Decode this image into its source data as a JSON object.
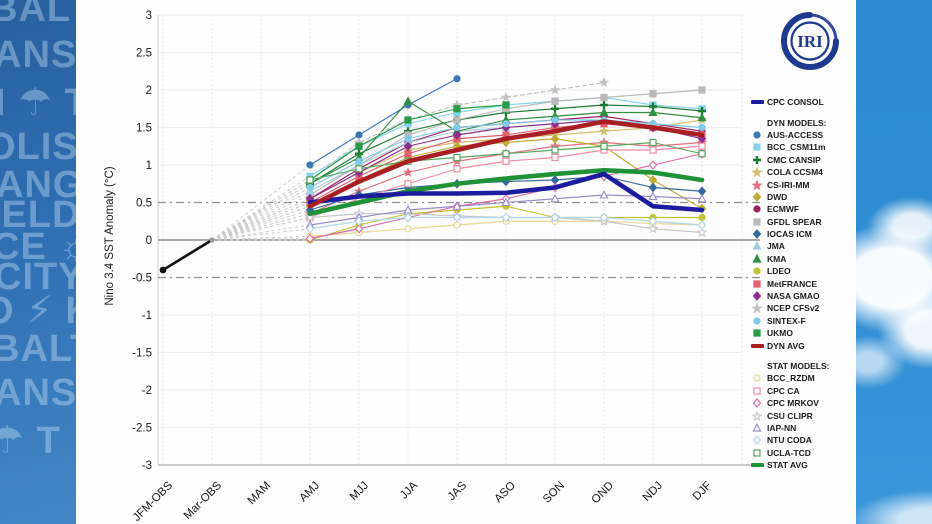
{
  "logo": {
    "text": "IRI"
  },
  "background": {
    "wall_fragments": [
      "BALT",
      "ANS",
      "N ☂ T",
      "OLIS ✦",
      "ANG",
      "IELD",
      "CE ☼",
      "CITY",
      "O ⚡ K",
      "BALT",
      "ANS",
      "☂ T"
    ],
    "wall_color": "#2f6fb4",
    "sky_color": "#2f8dd3"
  },
  "chart_data": {
    "type": "line",
    "title": "",
    "ylabel": "Nino 3.4 SST Anomaly (°C)",
    "xlabel": "",
    "ylim": [
      -3,
      3
    ],
    "ytick_labels": [
      "3",
      "2.5",
      "2",
      "1.5",
      "1",
      "0.5",
      "0",
      "-0.5",
      "-1",
      "-1.5",
      "-2",
      "-2.5",
      "-3"
    ],
    "threshold_lines": [
      0.5,
      -0.5
    ],
    "grid": true,
    "legend_position": "right",
    "categories": [
      "JFM-OBS",
      "Mar-OBS",
      "MAM",
      "AMJ",
      "MJJ",
      "JJA",
      "JAS",
      "ASO",
      "SON",
      "OND",
      "NDJ",
      "DJF"
    ],
    "forecast_start_category": "AMJ",
    "observation": {
      "name": "Observed",
      "color": "#111111",
      "categories": [
        "JFM-OBS",
        "Mar-OBS"
      ],
      "values": [
        -0.4,
        0.0
      ]
    },
    "legend_headers": {
      "dyn": "DYN MODELS:",
      "stat": "STAT MODELS:"
    },
    "series": [
      {
        "name": "CPC CONSOL",
        "group": "consol",
        "style": "avg",
        "color": "#1c1c9e",
        "values": [
          0.5,
          0.58,
          0.62,
          0.62,
          0.63,
          0.7,
          0.88,
          0.45,
          0.4
        ]
      },
      {
        "name": "AUS-ACCESS",
        "group": "dyn",
        "color": "#3a78b4",
        "marker": "circle",
        "open": false,
        "values": [
          1.0,
          1.4,
          1.8,
          2.15,
          null,
          null,
          null,
          null,
          null
        ]
      },
      {
        "name": "BCC_CSM11m",
        "group": "dyn",
        "color": "#86d3ee",
        "marker": "square",
        "open": false,
        "values": [
          0.85,
          1.25,
          1.55,
          1.7,
          1.8,
          1.85,
          1.9,
          1.8,
          1.75
        ]
      },
      {
        "name": "CMC CANSIP",
        "group": "dyn",
        "color": "#1d7c34",
        "marker": "plus",
        "open": false,
        "values": [
          0.75,
          1.15,
          1.45,
          1.6,
          1.7,
          1.75,
          1.8,
          1.78,
          1.72
        ]
      },
      {
        "name": "COLA CCSM4",
        "group": "dyn",
        "color": "#d3bd6e",
        "marker": "star",
        "open": false,
        "values": [
          0.55,
          0.9,
          1.2,
          1.3,
          1.35,
          1.4,
          1.45,
          1.5,
          1.6
        ]
      },
      {
        "name": "CS-IRI-MM",
        "group": "dyn",
        "color": "#e4717e",
        "marker": "star",
        "open": false,
        "values": [
          0.35,
          0.65,
          0.9,
          1.05,
          1.15,
          1.25,
          1.3,
          1.25,
          1.3
        ]
      },
      {
        "name": "DWD",
        "group": "dyn",
        "color": "#bfab35",
        "marker": "diamond",
        "open": false,
        "values": [
          0.45,
          0.8,
          1.1,
          1.25,
          1.3,
          1.35,
          1.25,
          0.8,
          0.42
        ]
      },
      {
        "name": "ECMWF",
        "group": "dyn",
        "color": "#a02064",
        "marker": "circle",
        "open": false,
        "values": [
          0.55,
          0.95,
          1.3,
          1.5,
          1.55,
          1.6,
          1.65,
          1.55,
          1.45
        ]
      },
      {
        "name": "GFDL SPEAR",
        "group": "dyn",
        "color": "#b9b9b9",
        "marker": "square",
        "open": false,
        "values": [
          0.6,
          1.0,
          1.4,
          1.6,
          1.75,
          1.85,
          1.9,
          1.95,
          2.0
        ]
      },
      {
        "name": "IOCAS ICM",
        "group": "dyn",
        "color": "#34699e",
        "marker": "diamond",
        "open": false,
        "values": [
          0.4,
          0.6,
          0.7,
          0.75,
          0.78,
          0.8,
          0.85,
          0.7,
          0.65
        ]
      },
      {
        "name": "JMA",
        "group": "dyn",
        "color": "#a9cde2",
        "marker": "triangle",
        "open": false,
        "values": [
          0.65,
          1.0,
          1.3,
          1.45,
          1.5,
          1.55,
          null,
          null,
          null
        ]
      },
      {
        "name": "KMA",
        "group": "dyn",
        "color": "#2f8f3f",
        "marker": "triangle",
        "open": false,
        "values": [
          0.75,
          1.1,
          1.85,
          1.45,
          1.6,
          1.65,
          1.7,
          1.7,
          1.63
        ]
      },
      {
        "name": "LDEO",
        "group": "dyn",
        "color": "#c3c331",
        "marker": "circle",
        "open": false,
        "values": [
          0.0,
          0.2,
          0.35,
          0.4,
          0.45,
          0.3,
          0.3,
          0.3,
          0.3
        ]
      },
      {
        "name": "MetFRANCE",
        "group": "dyn",
        "color": "#e4606a",
        "marker": "square",
        "open": false,
        "values": [
          0.5,
          0.85,
          1.15,
          1.35,
          1.4,
          1.5,
          1.55,
          1.5,
          1.4
        ]
      },
      {
        "name": "NASA GMAO",
        "group": "dyn",
        "color": "#8c2f8c",
        "marker": "diamond",
        "open": false,
        "values": [
          0.55,
          0.9,
          1.25,
          1.4,
          1.5,
          1.55,
          1.6,
          1.5,
          1.35
        ]
      },
      {
        "name": "NCEP CFSv2",
        "group": "dyn",
        "color": "#c0c0c0",
        "marker": "star",
        "open": false,
        "dashed": true,
        "values": [
          0.8,
          1.3,
          1.6,
          1.8,
          1.9,
          2.0,
          2.1,
          null,
          null
        ]
      },
      {
        "name": "SINTEX-F",
        "group": "dyn",
        "color": "#7ecae8",
        "marker": "circle",
        "open": false,
        "values": [
          0.7,
          1.05,
          1.35,
          1.5,
          1.55,
          1.6,
          1.6,
          1.55,
          1.5
        ]
      },
      {
        "name": "UKMO",
        "group": "dyn",
        "color": "#279b48",
        "marker": "square",
        "open": false,
        "values": [
          0.8,
          1.25,
          1.6,
          1.75,
          1.8,
          null,
          null,
          null,
          null
        ]
      },
      {
        "name": "DYN AVG",
        "group": "dyn",
        "style": "avg",
        "color": "#a81e22",
        "values": [
          0.45,
          0.78,
          1.05,
          1.2,
          1.35,
          1.45,
          1.58,
          1.5,
          1.4
        ]
      },
      {
        "name": "BCC_RZDM",
        "group": "stat",
        "color": "#e6d88f",
        "marker": "circle",
        "open": true,
        "values": [
          0.05,
          0.1,
          0.15,
          0.2,
          0.25,
          0.25,
          0.25,
          0.22,
          0.2
        ]
      },
      {
        "name": "CPC CA",
        "group": "stat",
        "color": "#f08ca4",
        "marker": "square",
        "open": true,
        "values": [
          0.3,
          0.55,
          0.75,
          0.95,
          1.05,
          1.1,
          1.2,
          1.2,
          1.25
        ]
      },
      {
        "name": "CPC MRKOV",
        "group": "stat",
        "color": "#dd6aa6",
        "marker": "diamond",
        "open": true,
        "values": [
          0.02,
          0.15,
          0.3,
          0.45,
          0.55,
          0.7,
          0.85,
          1.0,
          1.15
        ]
      },
      {
        "name": "CSU CLIPR",
        "group": "stat",
        "color": "#c6c6c6",
        "marker": "star",
        "open": true,
        "values": [
          0.3,
          0.35,
          0.35,
          0.32,
          0.3,
          0.3,
          0.25,
          0.15,
          0.1
        ]
      },
      {
        "name": "IAP-NN",
        "group": "stat",
        "color": "#9a8cc8",
        "marker": "triangle",
        "open": true,
        "values": [
          0.2,
          0.3,
          0.4,
          0.45,
          0.5,
          0.55,
          0.6,
          0.58,
          0.55
        ]
      },
      {
        "name": "NTU CODA",
        "group": "stat",
        "color": "#aed7ef",
        "marker": "diamond",
        "open": true,
        "values": [
          0.15,
          0.25,
          0.3,
          0.3,
          0.3,
          0.3,
          0.3,
          0.25,
          0.2
        ]
      },
      {
        "name": "UCLA-TCD",
        "group": "stat",
        "color": "#56a65c",
        "marker": "square",
        "open": true,
        "values": [
          0.8,
          0.95,
          1.05,
          1.1,
          1.15,
          1.2,
          1.25,
          1.3,
          1.15
        ]
      },
      {
        "name": "STAT AVG",
        "group": "stat",
        "style": "avg",
        "color": "#1f9136",
        "values": [
          0.35,
          0.5,
          0.65,
          0.75,
          0.82,
          0.88,
          0.93,
          0.9,
          0.8
        ]
      }
    ]
  }
}
